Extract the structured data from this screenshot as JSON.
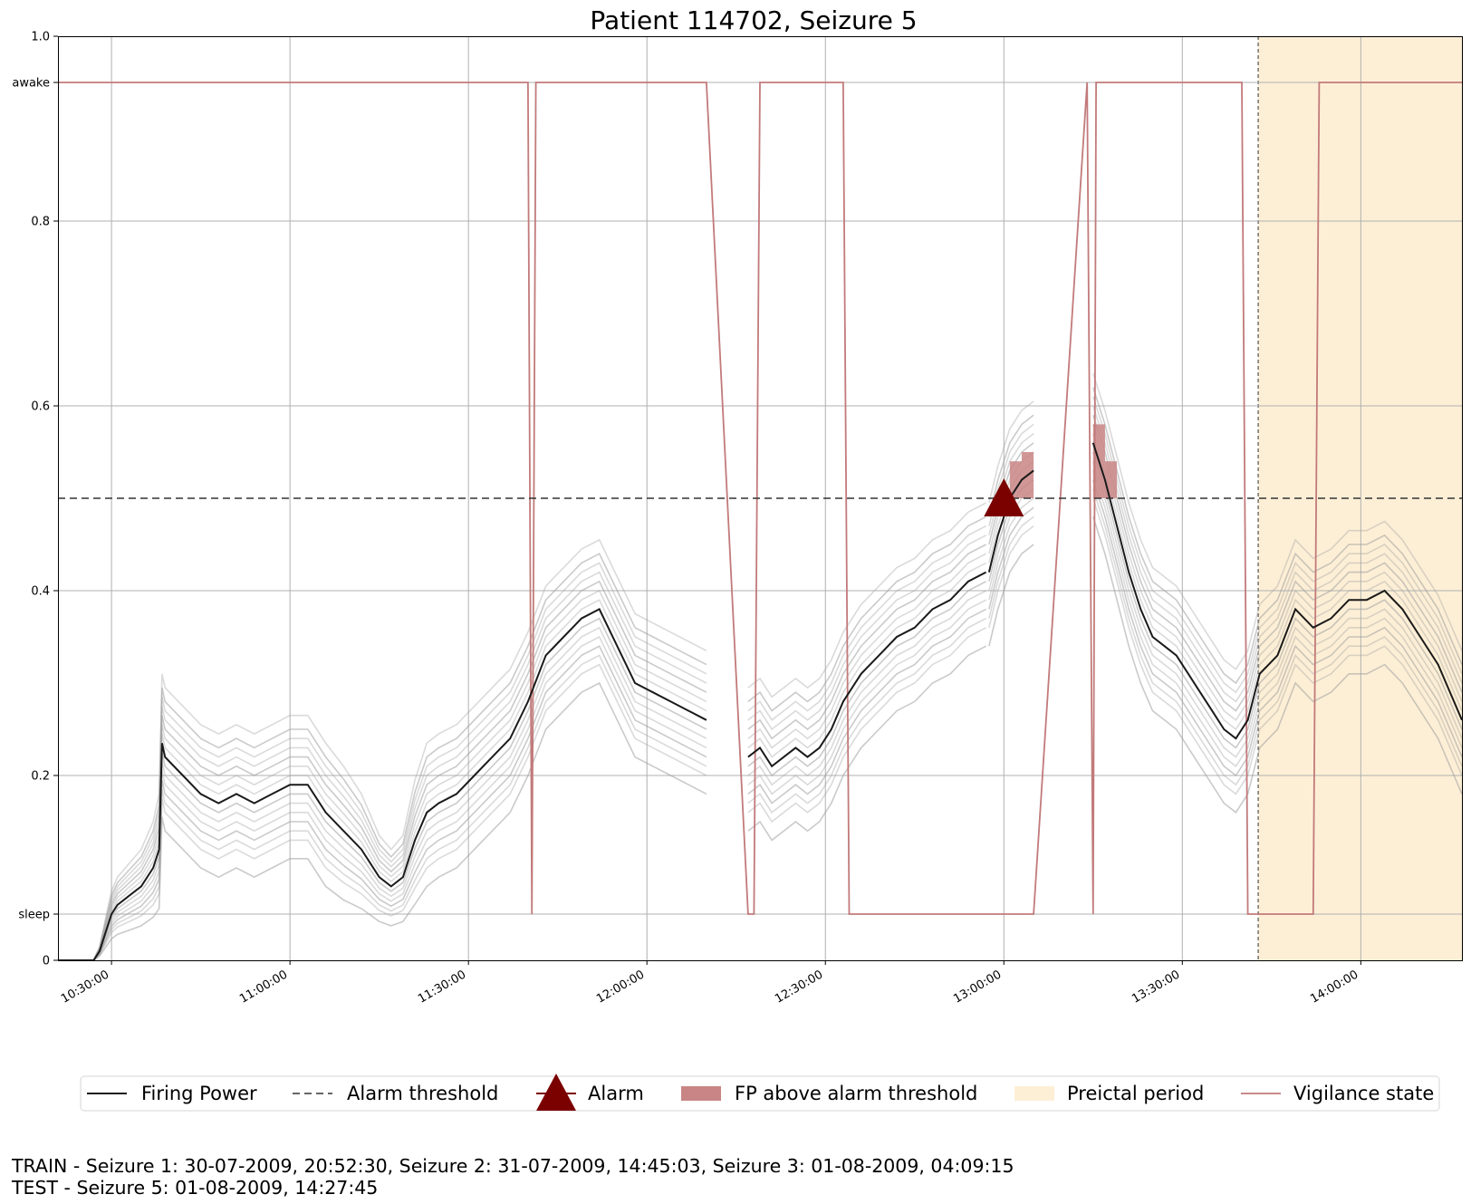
{
  "chart_data": {
    "type": "line",
    "title": "Patient 114702, Seizure 5",
    "xlabel": "",
    "ylabel": "",
    "xlim": [
      "10:21:00",
      "14:17:00"
    ],
    "ylim": [
      0,
      1.0
    ],
    "grid": true,
    "x_ticks": [
      "10:30:00",
      "11:00:00",
      "11:30:00",
      "12:00:00",
      "12:30:00",
      "13:00:00",
      "13:30:00",
      "14:00:00"
    ],
    "y_ticks": [
      {
        "value": 0,
        "label": "0"
      },
      {
        "value": 0.05,
        "label": "sleep"
      },
      {
        "value": 0.2,
        "label": "0.2"
      },
      {
        "value": 0.4,
        "label": "0.4"
      },
      {
        "value": 0.6,
        "label": "0.6"
      },
      {
        "value": 0.8,
        "label": "0.8"
      },
      {
        "value": 0.95,
        "label": "awake"
      },
      {
        "value": 1.0,
        "label": "1.0"
      }
    ],
    "alarm_threshold": 0.5,
    "preictal_period": [
      "13:42:45",
      "14:17:00"
    ],
    "alarm": {
      "time": "13:00:00",
      "value": 0.5
    },
    "firing_power": {
      "segments": [
        {
          "x": [
            "10:21:00",
            "10:27:00",
            "10:28:00",
            "10:29:00",
            "10:30:00",
            "10:31:00",
            "10:33:00",
            "10:35:00",
            "10:37:00",
            "10:38:00",
            "10:38:30",
            "10:39:00",
            "10:42:00",
            "10:45:00",
            "10:48:00",
            "10:51:00",
            "10:54:00",
            "10:57:00",
            "11:00:00",
            "11:03:00",
            "11:06:00",
            "11:09:00",
            "11:12:00",
            "11:15:00",
            "11:17:00",
            "11:19:00",
            "11:21:00",
            "11:23:00",
            "11:25:00",
            "11:28:00",
            "11:31:00",
            "11:34:00",
            "11:37:00",
            "11:40:00",
            "11:43:00",
            "11:46:00",
            "11:49:00",
            "11:52:00",
            "11:55:00",
            "11:58:00",
            "12:01:00",
            "12:04:00",
            "12:07:00",
            "12:10:00"
          ],
          "y": [
            0,
            0,
            0.01,
            0.03,
            0.05,
            0.06,
            0.07,
            0.08,
            0.1,
            0.12,
            0.235,
            0.22,
            0.2,
            0.18,
            0.17,
            0.18,
            0.17,
            0.18,
            0.19,
            0.19,
            0.16,
            0.14,
            0.12,
            0.09,
            0.08,
            0.09,
            0.13,
            0.16,
            0.17,
            0.18,
            0.2,
            0.22,
            0.24,
            0.28,
            0.33,
            0.35,
            0.37,
            0.38,
            0.34,
            0.3,
            0.29,
            0.28,
            0.27,
            0.26
          ]
        },
        {
          "x": [
            "12:17:00",
            "12:19:00",
            "12:21:00",
            "12:23:00",
            "12:25:00",
            "12:27:00",
            "12:29:00",
            "12:31:00",
            "12:33:00",
            "12:36:00",
            "12:39:00",
            "12:42:00",
            "12:45:00",
            "12:48:00",
            "12:51:00",
            "12:54:00",
            "12:57:00"
          ],
          "y": [
            0.22,
            0.23,
            0.21,
            0.22,
            0.23,
            0.22,
            0.23,
            0.25,
            0.28,
            0.31,
            0.33,
            0.35,
            0.36,
            0.38,
            0.39,
            0.41,
            0.42
          ]
        },
        {
          "x": [
            "12:57:30",
            "12:59:00",
            "13:00:00",
            "13:01:00",
            "13:03:00",
            "13:05:00"
          ],
          "y": [
            0.42,
            0.46,
            0.48,
            0.5,
            0.52,
            0.53
          ]
        },
        {
          "x": [
            "13:15:00",
            "13:17:00",
            "13:19:00",
            "13:21:00",
            "13:23:00",
            "13:25:00",
            "13:27:00",
            "13:29:00",
            "13:31:00",
            "13:33:00",
            "13:35:00",
            "13:37:00",
            "13:39:00",
            "13:41:00",
            "13:43:00",
            "13:46:00",
            "13:49:00",
            "13:52:00",
            "13:55:00",
            "13:58:00",
            "14:01:00",
            "14:04:00",
            "14:07:00",
            "14:10:00",
            "14:13:00",
            "14:17:00"
          ],
          "y": [
            0.56,
            0.52,
            0.47,
            0.42,
            0.38,
            0.35,
            0.34,
            0.33,
            0.31,
            0.29,
            0.27,
            0.25,
            0.24,
            0.26,
            0.31,
            0.33,
            0.38,
            0.36,
            0.37,
            0.39,
            0.39,
            0.4,
            0.38,
            0.35,
            0.32,
            0.26
          ]
        }
      ]
    },
    "vigilance_state": {
      "x": [
        "10:21:00",
        "11:40:00",
        "11:40:40",
        "11:41:20",
        "12:10:00",
        "12:17:00",
        "12:18:00",
        "12:19:00",
        "12:33:00",
        "12:34:00",
        "13:05:00",
        "13:14:00",
        "13:15:00",
        "13:15:30",
        "13:40:00",
        "13:41:00",
        "13:52:00",
        "13:53:00",
        "14:17:00"
      ],
      "y": [
        0.95,
        0.95,
        0.05,
        0.95,
        0.95,
        0.05,
        0.05,
        0.95,
        0.95,
        0.05,
        0.05,
        0.95,
        0.05,
        0.95,
        0.95,
        0.05,
        0.05,
        0.95,
        0.95
      ]
    },
    "legend": {
      "placement": "bottom",
      "entries": [
        "Firing Power",
        "Alarm threshold",
        "Alarm",
        "FP above alarm threshold",
        "Preictal period",
        "Vigilance state"
      ]
    },
    "annotations": {
      "train": "TRAIN - Seizure 1: 30-07-2009, 20:52:30, Seizure 2: 31-07-2009, 14:45:03, Seizure 3: 01-08-2009, 04:09:15",
      "test": "TEST - Seizure 5: 01-08-2009, 14:27:45"
    }
  },
  "colors": {
    "firing_power": "#1a1a1a",
    "ensemble": "#9e9e9e",
    "threshold": "#333333",
    "alarm": "#7b0000",
    "fp_above": "#c98585",
    "preictal": "#fdefd6",
    "vigilance": "#c27a7a",
    "grid": "#b0b0b0"
  }
}
